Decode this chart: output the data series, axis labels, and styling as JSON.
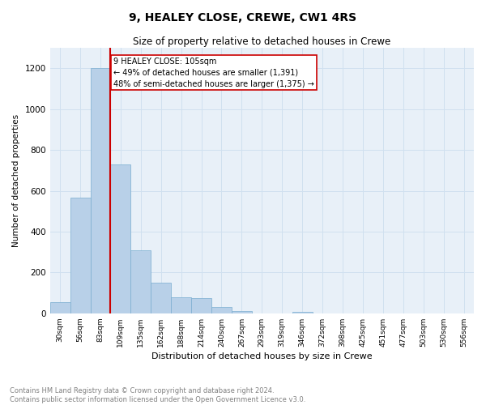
{
  "title": "9, HEALEY CLOSE, CREWE, CW1 4RS",
  "subtitle": "Size of property relative to detached houses in Crewe",
  "xlabel": "Distribution of detached houses by size in Crewe",
  "ylabel": "Number of detached properties",
  "footer": "Contains HM Land Registry data © Crown copyright and database right 2024.\nContains public sector information licensed under the Open Government Licence v3.0.",
  "bar_color": "#b8d0e8",
  "bar_edge_color": "#7aadd0",
  "grid_color": "#d0e0ef",
  "bg_color": "#e8f0f8",
  "annotation_box_color": "#cc0000",
  "vline_color": "#cc0000",
  "bins": [
    "30sqm",
    "56sqm",
    "83sqm",
    "109sqm",
    "135sqm",
    "162sqm",
    "188sqm",
    "214sqm",
    "240sqm",
    "267sqm",
    "293sqm",
    "319sqm",
    "346sqm",
    "372sqm",
    "398sqm",
    "425sqm",
    "451sqm",
    "477sqm",
    "503sqm",
    "530sqm",
    "556sqm"
  ],
  "values": [
    55,
    565,
    1200,
    730,
    310,
    150,
    80,
    75,
    30,
    10,
    0,
    0,
    8,
    0,
    0,
    0,
    0,
    0,
    0,
    0,
    0
  ],
  "vline_x": 2.5,
  "annotation_text": "9 HEALEY CLOSE: 105sqm\n← 49% of detached houses are smaller (1,391)\n48% of semi-detached houses are larger (1,375) →",
  "ylim": [
    0,
    1300
  ],
  "yticks": [
    0,
    200,
    400,
    600,
    800,
    1000,
    1200
  ]
}
